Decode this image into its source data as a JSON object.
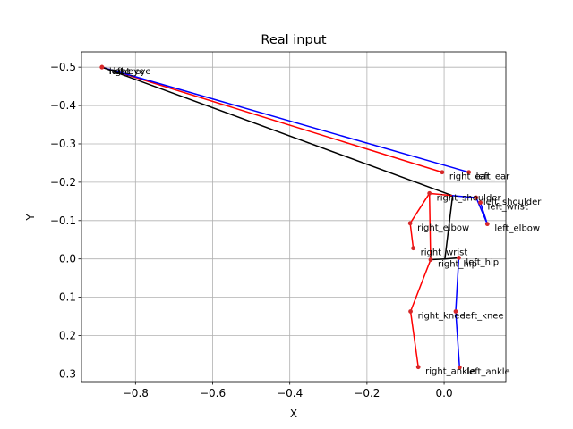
{
  "chart_data": {
    "type": "scatter",
    "title": "Real input",
    "xlabel": "X",
    "ylabel": "Y",
    "xlim": [
      -0.94,
      0.16
    ],
    "ylim": [
      0.32,
      -0.54
    ],
    "y_inverted": true,
    "grid": true,
    "x_ticks": [
      -0.8,
      -0.6,
      -0.4,
      -0.2,
      0.0
    ],
    "x_tick_labels": [
      "−0.8",
      "−0.6",
      "−0.4",
      "−0.2",
      "0.0"
    ],
    "y_ticks": [
      -0.5,
      -0.4,
      -0.3,
      -0.2,
      -0.1,
      0.0,
      0.1,
      0.2,
      0.3
    ],
    "y_tick_labels": [
      "−0.5",
      "−0.4",
      "−0.3",
      "−0.2",
      "−0.1",
      "0.0",
      "0.1",
      "0.2",
      "0.3"
    ],
    "colors": {
      "left": "#0000ff",
      "right": "#ff0000",
      "center": "#000000",
      "point": "#d62728"
    },
    "keypoints": [
      {
        "name": "nose",
        "label": "nose",
        "x": -0.887,
        "y": -0.5
      },
      {
        "name": "left_eye",
        "label": "left_eye",
        "x": -0.887,
        "y": -0.5
      },
      {
        "name": "right_eye",
        "label": "right_eye",
        "x": -0.887,
        "y": -0.5
      },
      {
        "name": "left_ear",
        "label": "left_ear",
        "x": 0.064,
        "y": -0.226
      },
      {
        "name": "right_ear",
        "label": "right_ear",
        "x": -0.005,
        "y": -0.226
      },
      {
        "name": "left_shoulder",
        "label": "left_shoulder",
        "x": 0.083,
        "y": -0.16
      },
      {
        "name": "right_shoulder",
        "label": "right_shoulder",
        "x": -0.038,
        "y": -0.171
      },
      {
        "name": "left_elbow",
        "label": "left_elbow",
        "x": 0.112,
        "y": -0.091
      },
      {
        "name": "right_elbow",
        "label": "right_elbow",
        "x": -0.088,
        "y": -0.093
      },
      {
        "name": "left_wrist",
        "label": "left_wrist",
        "x": 0.094,
        "y": -0.147
      },
      {
        "name": "right_wrist",
        "label": "right_wrist",
        "x": -0.08,
        "y": -0.028
      },
      {
        "name": "left_hip",
        "label": "left_hip",
        "x": 0.038,
        "y": -0.003
      },
      {
        "name": "right_hip",
        "label": "right_hip",
        "x": -0.035,
        "y": 0.002
      },
      {
        "name": "left_knee",
        "label": "left_knee",
        "x": 0.03,
        "y": 0.137
      },
      {
        "name": "right_knee",
        "label": "right_knee",
        "x": -0.087,
        "y": 0.137
      },
      {
        "name": "left_ankle",
        "label": "left_ankle",
        "x": 0.04,
        "y": 0.283
      },
      {
        "name": "right_ankle",
        "label": "right_ankle",
        "x": -0.067,
        "y": 0.282
      }
    ],
    "segments": [
      {
        "side": "right",
        "from": "nose",
        "to": "right_ear"
      },
      {
        "side": "left",
        "from": "nose",
        "to": "left_ear"
      },
      {
        "side": "center",
        "from": "nose",
        "to": "neck"
      },
      {
        "side": "center",
        "from": "neck",
        "to": "pelvis"
      },
      {
        "side": "right",
        "from": "neck",
        "to": "right_shoulder"
      },
      {
        "side": "right",
        "from": "right_shoulder",
        "to": "right_elbow"
      },
      {
        "side": "right",
        "from": "right_elbow",
        "to": "right_wrist"
      },
      {
        "side": "left",
        "from": "neck",
        "to": "left_shoulder"
      },
      {
        "side": "left",
        "from": "left_shoulder",
        "to": "left_elbow"
      },
      {
        "side": "left",
        "from": "left_elbow",
        "to": "left_wrist"
      },
      {
        "side": "right",
        "from": "right_shoulder",
        "to": "right_hip"
      },
      {
        "side": "center",
        "from": "pelvis",
        "to": "right_hip"
      },
      {
        "side": "center",
        "from": "pelvis",
        "to": "left_hip"
      },
      {
        "side": "right",
        "from": "right_hip",
        "to": "right_knee"
      },
      {
        "side": "right",
        "from": "right_knee",
        "to": "right_ankle"
      },
      {
        "side": "left",
        "from": "left_hip",
        "to": "left_knee"
      },
      {
        "side": "left",
        "from": "left_knee",
        "to": "left_ankle"
      }
    ],
    "virtual_points": [
      {
        "name": "neck",
        "x": 0.022,
        "y": -0.165
      },
      {
        "name": "pelvis",
        "x": 0.002,
        "y": 0.0
      }
    ]
  }
}
